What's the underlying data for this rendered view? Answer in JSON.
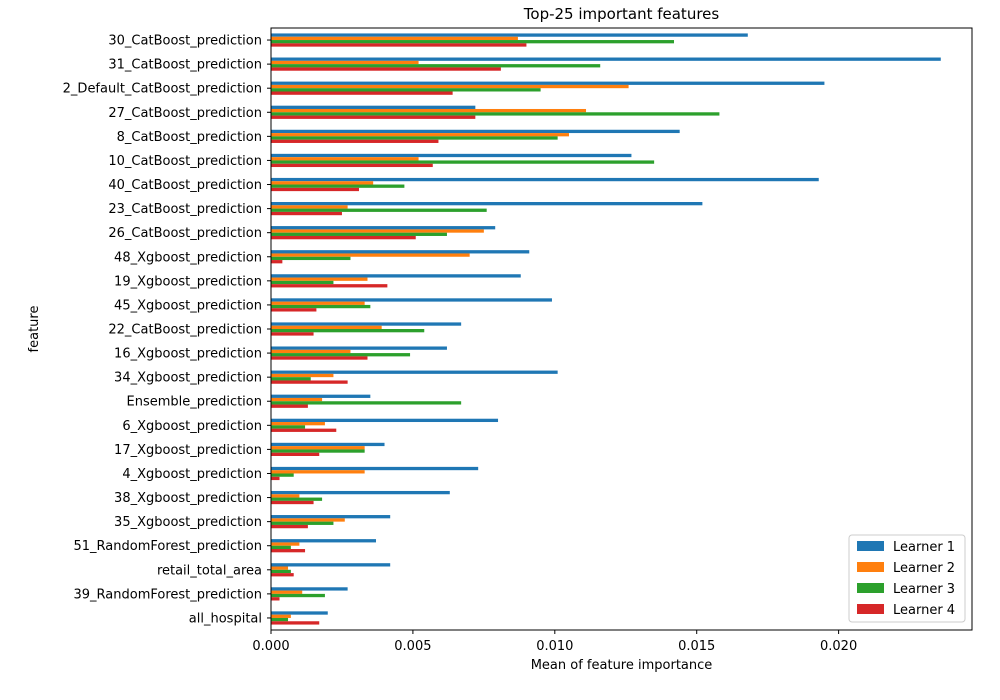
{
  "chart_data": {
    "type": "bar",
    "orientation": "horizontal",
    "title": "Top-25 important features",
    "xlabel": "Mean of feature importance",
    "ylabel": "feature",
    "xlim": [
      0,
      0.0247
    ],
    "xticks": [
      0.0,
      0.005,
      0.01,
      0.015,
      0.02
    ],
    "xtick_labels": [
      "0.000",
      "0.005",
      "0.010",
      "0.015",
      "0.020"
    ],
    "legend_position": "bottom-right",
    "grid": false,
    "categories": [
      "30_CatBoost_prediction",
      "31_CatBoost_prediction",
      "2_Default_CatBoost_prediction",
      "27_CatBoost_prediction",
      "8_CatBoost_prediction",
      "10_CatBoost_prediction",
      "40_CatBoost_prediction",
      "23_CatBoost_prediction",
      "26_CatBoost_prediction",
      "48_Xgboost_prediction",
      "19_Xgboost_prediction",
      "45_Xgboost_prediction",
      "22_CatBoost_prediction",
      "16_Xgboost_prediction",
      "34_Xgboost_prediction",
      "Ensemble_prediction",
      "6_Xgboost_prediction",
      "17_Xgboost_prediction",
      "4_Xgboost_prediction",
      "38_Xgboost_prediction",
      "35_Xgboost_prediction",
      "51_RandomForest_prediction",
      "retail_total_area",
      "39_RandomForest_prediction",
      "all_hospital"
    ],
    "series": [
      {
        "name": "Learner 1",
        "color": "#1f77b4",
        "values": [
          0.0168,
          0.0236,
          0.0195,
          0.0072,
          0.0144,
          0.0127,
          0.0193,
          0.0152,
          0.0079,
          0.0091,
          0.0088,
          0.0099,
          0.0067,
          0.0062,
          0.0101,
          0.0035,
          0.008,
          0.004,
          0.0073,
          0.0063,
          0.0042,
          0.0037,
          0.0042,
          0.0027,
          0.002
        ]
      },
      {
        "name": "Learner 2",
        "color": "#ff7f0e",
        "values": [
          0.0087,
          0.0052,
          0.0126,
          0.0111,
          0.0105,
          0.0052,
          0.0036,
          0.0027,
          0.0075,
          0.007,
          0.0034,
          0.0033,
          0.0039,
          0.0028,
          0.0022,
          0.0018,
          0.0019,
          0.0033,
          0.0033,
          0.001,
          0.0026,
          0.001,
          0.0006,
          0.0011,
          0.0007
        ]
      },
      {
        "name": "Learner 3",
        "color": "#2ca02c",
        "values": [
          0.0142,
          0.0116,
          0.0095,
          0.0158,
          0.0101,
          0.0135,
          0.0047,
          0.0076,
          0.0062,
          0.0028,
          0.0022,
          0.0035,
          0.0054,
          0.0049,
          0.0014,
          0.0067,
          0.0012,
          0.0033,
          0.0008,
          0.0018,
          0.0022,
          0.0007,
          0.0007,
          0.0019,
          0.0006
        ]
      },
      {
        "name": "Learner 4",
        "color": "#d62728",
        "values": [
          0.009,
          0.0081,
          0.0064,
          0.0072,
          0.0059,
          0.0057,
          0.0031,
          0.0025,
          0.0051,
          0.0004,
          0.0041,
          0.0016,
          0.0015,
          0.0034,
          0.0027,
          0.0013,
          0.0023,
          0.0017,
          0.0003,
          0.0015,
          0.0013,
          0.0012,
          0.0008,
          0.0003,
          0.0017
        ]
      }
    ]
  }
}
